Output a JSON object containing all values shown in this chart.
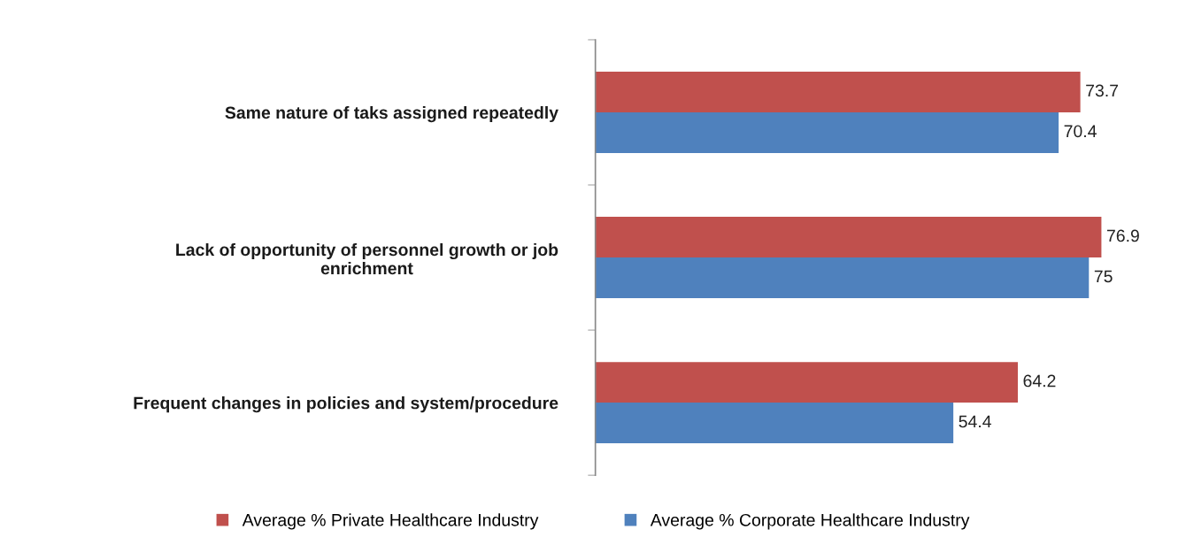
{
  "chart_data": {
    "type": "bar",
    "orientation": "horizontal",
    "categories": [
      "Same nature of taks assigned repeatedly",
      "Lack of opportunity of personnel growth or job\nenrichment",
      "Frequent changes in policies and system/procedure"
    ],
    "series": [
      {
        "name": "Average % Private Healthcare Industry",
        "color": "#c0504d",
        "values": [
          73.7,
          76.9,
          64.2
        ]
      },
      {
        "name": "Average % Corporate Healthcare Industry",
        "color": "#4f81bd",
        "values": [
          70.4,
          75,
          54.4
        ]
      }
    ],
    "data_labels": true,
    "legend": "bottom",
    "tick_labels": "y"
  }
}
